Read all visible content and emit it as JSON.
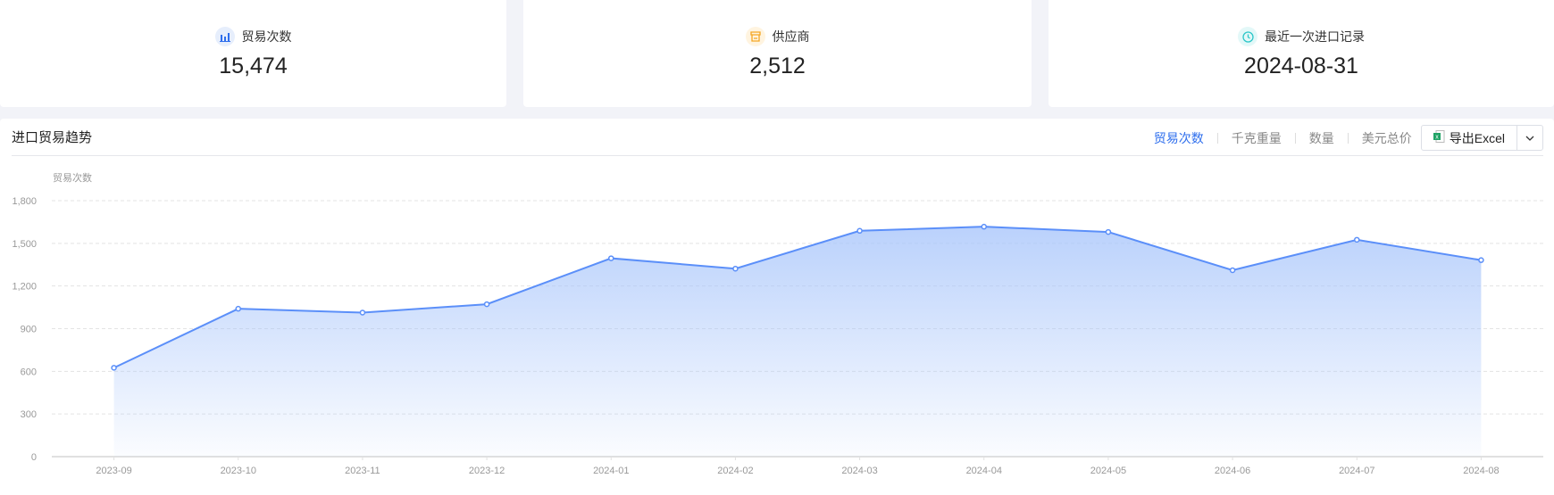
{
  "stats": [
    {
      "label": "贸易次数",
      "value": "15,474",
      "icon": "bar-chart-icon",
      "icon_color": "#2f6fed",
      "icon_bg": "#e6eefc"
    },
    {
      "label": "供应商",
      "value": "2,512",
      "icon": "store-icon",
      "icon_color": "#f5a623",
      "icon_bg": "#fff4e0"
    },
    {
      "label": "最近一次进口记录",
      "value": "2024-08-31",
      "icon": "clock-icon",
      "icon_color": "#2ec7c9",
      "icon_bg": "#e3f8f8"
    }
  ],
  "panel": {
    "title": "进口贸易趋势",
    "tabs": [
      {
        "label": "贸易次数",
        "active": true
      },
      {
        "label": "千克重量",
        "active": false
      },
      {
        "label": "数量",
        "active": false
      },
      {
        "label": "美元总价",
        "active": false
      }
    ],
    "export_label": "导出Excel"
  },
  "chart_data": {
    "type": "area",
    "ylabel": "贸易次数",
    "categories": [
      "2023-09",
      "2023-10",
      "2023-11",
      "2023-12",
      "2024-01",
      "2024-02",
      "2024-03",
      "2024-04",
      "2024-05",
      "2024-06",
      "2024-07",
      "2024-08"
    ],
    "series": [
      {
        "values": [
          625,
          1040,
          1013,
          1072,
          1395,
          1322,
          1588,
          1617,
          1580,
          1311,
          1525,
          1382
        ]
      }
    ],
    "ylim": [
      0,
      1800
    ],
    "yticks": [
      "0",
      "300",
      "600",
      "900",
      "1,200",
      "1,500",
      "1,800"
    ],
    "ytick_values": [
      0,
      300,
      600,
      900,
      1200,
      1500,
      1800
    ],
    "grid": true,
    "line_color": "#5b8ff9",
    "fill_color": "#a9c6fb"
  }
}
